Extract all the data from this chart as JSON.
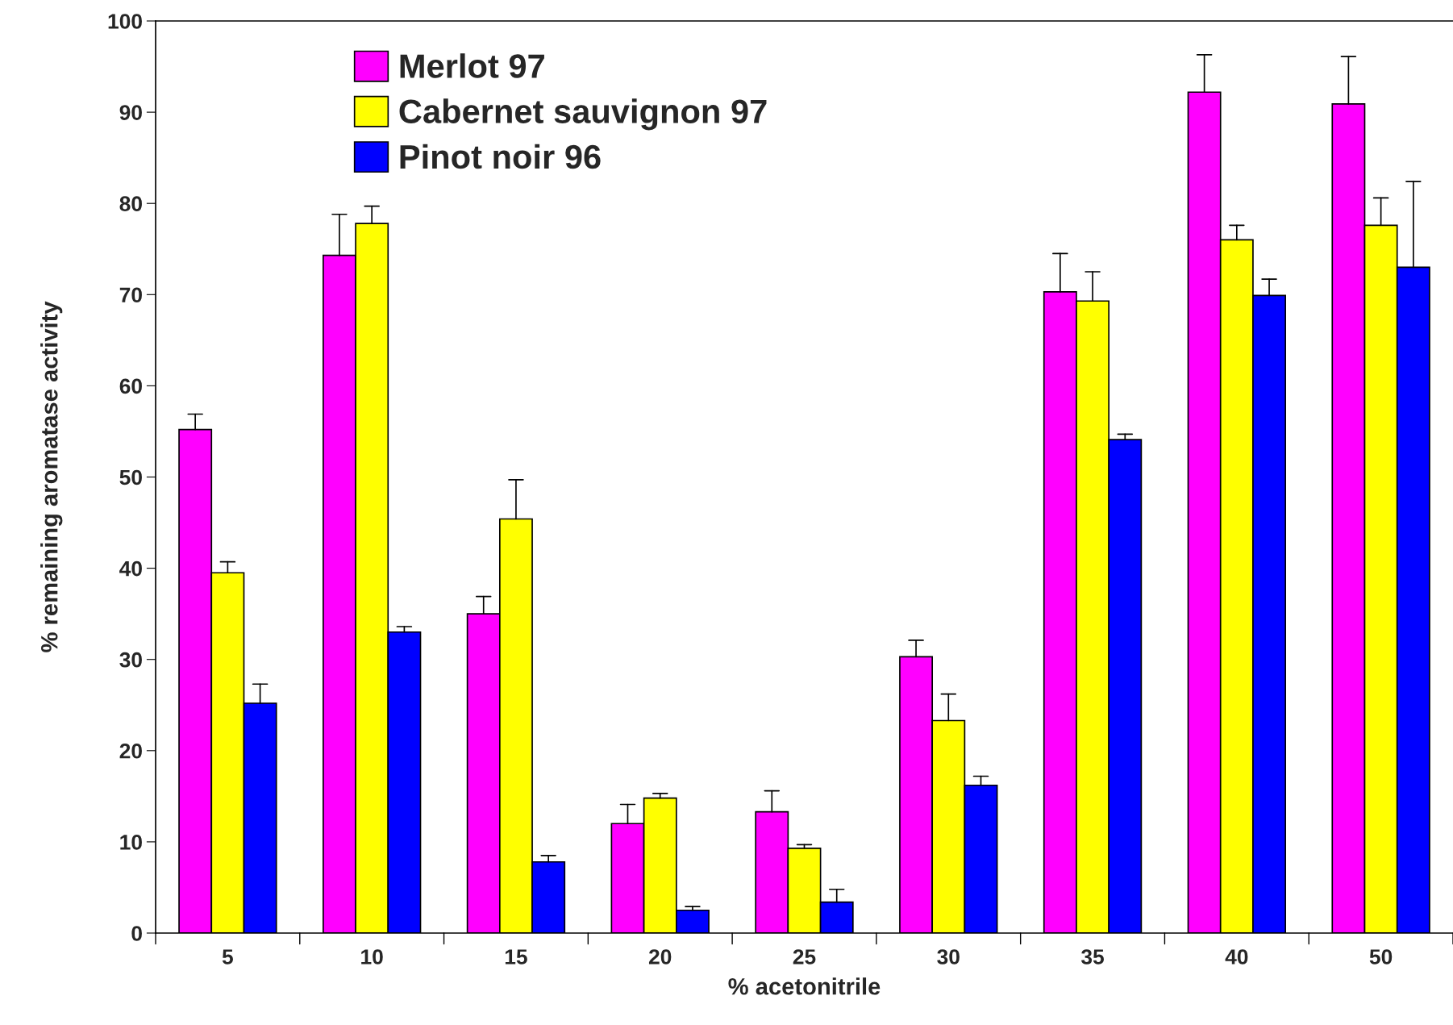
{
  "chart_data": {
    "type": "bar",
    "xlabel": "% acetonitrile",
    "ylabel": "% remaining aromatase activity",
    "categories": [
      "5",
      "10",
      "15",
      "20",
      "25",
      "30",
      "35",
      "40",
      "50"
    ],
    "series": [
      {
        "name": "Merlot 97",
        "color": "#ff00ff",
        "values": [
          55.2,
          74.3,
          35.0,
          12.0,
          13.3,
          30.3,
          70.3,
          92.2,
          90.9
        ],
        "errors": [
          [
            55.2,
            56.9
          ],
          [
            74.3,
            78.8
          ],
          [
            35.0,
            36.9
          ],
          [
            12.0,
            14.1
          ],
          [
            13.3,
            15.6
          ],
          [
            30.3,
            32.1
          ],
          [
            70.3,
            74.5
          ],
          [
            92.2,
            96.3
          ],
          [
            90.9,
            96.1
          ]
        ]
      },
      {
        "name": "Cabernet sauvignon 97",
        "color": "#ffff00",
        "values": [
          39.5,
          77.8,
          45.4,
          14.8,
          9.3,
          23.3,
          69.3,
          76.0,
          77.6
        ],
        "errors": [
          [
            39.5,
            40.7
          ],
          [
            77.8,
            79.7
          ],
          [
            45.4,
            49.7
          ],
          [
            14.8,
            15.3
          ],
          [
            9.3,
            9.7
          ],
          [
            23.3,
            26.2
          ],
          [
            69.3,
            72.5
          ],
          [
            76.0,
            77.6
          ],
          [
            77.6,
            80.6
          ]
        ]
      },
      {
        "name": "Pinot noir 96",
        "color": "#0000ff",
        "values": [
          25.2,
          33.0,
          7.8,
          2.5,
          3.4,
          16.2,
          54.1,
          69.9,
          73.0
        ],
        "errors": [
          [
            25.2,
            27.3
          ],
          [
            33.0,
            33.6
          ],
          [
            7.8,
            8.5
          ],
          [
            2.5,
            2.9
          ],
          [
            3.4,
            4.8
          ],
          [
            16.2,
            17.2
          ],
          [
            54.1,
            54.7
          ],
          [
            69.9,
            71.7
          ],
          [
            73.0,
            82.4
          ]
        ]
      }
    ],
    "ylim": [
      0,
      100
    ],
    "yticks": [
      0,
      10,
      20,
      30,
      40,
      50,
      60,
      70,
      80,
      90,
      100
    ],
    "grid": false,
    "legend": "top left"
  }
}
